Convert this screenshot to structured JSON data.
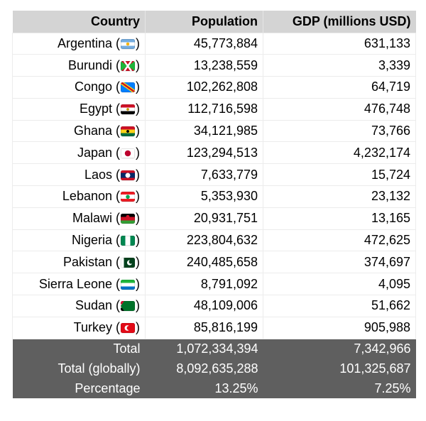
{
  "colors": {
    "header_bg": "#d4d4d4",
    "footer_bg": "#5f5f5f",
    "row_border": "#ececec",
    "body_text": "#000000",
    "footer_text": "#ffffff"
  },
  "table": {
    "headers": [
      "Country",
      "Population",
      "GDP (millions USD)"
    ],
    "rows": [
      {
        "country": "Argentina",
        "flag": "argentina",
        "flag_emoji": "🇦🇷",
        "population": "45,773,884",
        "gdp": "631,133"
      },
      {
        "country": "Burundi",
        "flag": "burundi",
        "flag_emoji": "🇧🇮",
        "population": "13,238,559",
        "gdp": "3,339"
      },
      {
        "country": "Congo",
        "flag": "congo",
        "flag_emoji": "🇨🇩",
        "population": "102,262,808",
        "gdp": "64,719"
      },
      {
        "country": "Egypt",
        "flag": "egypt",
        "flag_emoji": "🇪🇬",
        "population": "112,716,598",
        "gdp": "476,748"
      },
      {
        "country": "Ghana",
        "flag": "ghana",
        "flag_emoji": "🇬🇭",
        "population": "34,121,985",
        "gdp": "73,766"
      },
      {
        "country": "Japan",
        "flag": "japan",
        "flag_emoji": "🇯🇵",
        "population": "123,294,513",
        "gdp": "4,232,174"
      },
      {
        "country": "Laos",
        "flag": "laos",
        "flag_emoji": "🇱🇦",
        "population": "7,633,779",
        "gdp": "15,724"
      },
      {
        "country": "Lebanon",
        "flag": "lebanon",
        "flag_emoji": "🇱🇧",
        "population": "5,353,930",
        "gdp": "23,132"
      },
      {
        "country": "Malawi",
        "flag": "malawi",
        "flag_emoji": "🇲🇼",
        "population": "20,931,751",
        "gdp": "13,165"
      },
      {
        "country": "Nigeria",
        "flag": "nigeria",
        "flag_emoji": "🇳🇬",
        "population": "223,804,632",
        "gdp": "472,625"
      },
      {
        "country": "Pakistan",
        "flag": "pakistan",
        "flag_emoji": "🇵🇰",
        "population": "240,485,658",
        "gdp": "374,697"
      },
      {
        "country": "Sierra Leone",
        "flag": "sierra-leone",
        "flag_emoji": "🇸🇱",
        "population": "8,791,092",
        "gdp": "4,095"
      },
      {
        "country": "Sudan",
        "flag": "sudan",
        "flag_emoji": "🇸🇩",
        "population": "48,109,006",
        "gdp": "51,662"
      },
      {
        "country": "Turkey",
        "flag": "turkey",
        "flag_emoji": "🇹🇷",
        "population": "85,816,199",
        "gdp": "905,988"
      }
    ],
    "label_paren_open": " (",
    "label_paren_close": ")",
    "footer_rows": [
      {
        "label": "Total",
        "population": "1,072,334,394",
        "gdp": "7,342,966"
      },
      {
        "label": "Total (globally)",
        "population": "8,092,635,288",
        "gdp": "101,325,687"
      },
      {
        "label": "Percentage",
        "population": "13.25%",
        "gdp": "7.25%"
      }
    ]
  }
}
